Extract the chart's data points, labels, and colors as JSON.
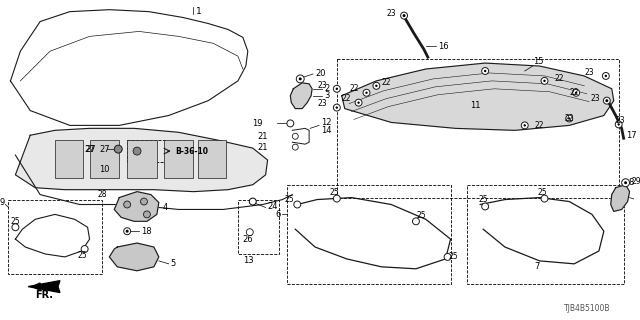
{
  "bg": "#ffffff",
  "lc": "#1a1a1a",
  "part_number": "TJB4B5100B",
  "fig_w": 6.4,
  "fig_h": 3.2,
  "dpi": 100
}
